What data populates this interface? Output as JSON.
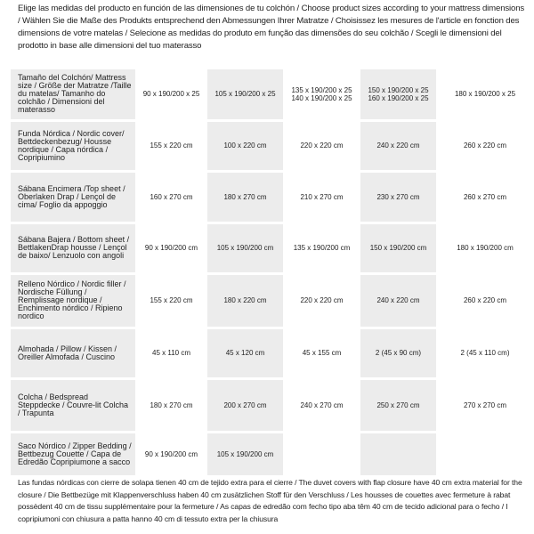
{
  "header": {
    "text": "Elige las medidas del producto en función de las dimensiones de tu colchón / Choose product sizes according to your mattress dimensions / Wählen Sie die Maße des Produkts entsprechend den Abmessungen Ihrer Matratze / Choisissez les mesures de l'article en fonction des dimensions de votre matelas / Selecione as medidas do produto em função das dimensões do seu colchão / Scegli le dimensioni del prodotto in base alle dimensioni del tuo materasso"
  },
  "table": {
    "rows": [
      {
        "label": "Tamaño del Colchón/ Mattress size / Größe der Matratze /Taille du matelas/ Tamanho do colchão / Dimensioni del materasso",
        "cells": [
          [
            "90 x 190/200 x 25"
          ],
          [
            "105 x 190/200 x 25"
          ],
          [
            "135 x 190/200 x 25",
            "140 x 190/200 x 25"
          ],
          [
            "150 x 190/200 x 25",
            "160 x 190/200 x 25"
          ],
          [
            "180 x 190/200 x 25"
          ]
        ]
      },
      {
        "label": "Funda Nórdica / Nordic cover/ Bettdeckenbezug/ Housse nordique / Capa nórdica / Copripiumino",
        "cells": [
          [
            "155 x 220 cm"
          ],
          [
            "100 x 220 cm"
          ],
          [
            "220 x 220 cm"
          ],
          [
            "240 x 220 cm"
          ],
          [
            "260 x 220 cm"
          ]
        ]
      },
      {
        "label": "Sábana Encimera /Top sheet / Oberlaken Drap / Lençol de cima/ Foglio da appoggio",
        "cells": [
          [
            "160 x 270 cm"
          ],
          [
            "180 x 270 cm"
          ],
          [
            "210 x 270 cm"
          ],
          [
            "230 x 270 cm"
          ],
          [
            "260 x 270 cm"
          ]
        ]
      },
      {
        "label": "Sábana Bajera / Bottom sheet / BettlakenDrap housse / Lençol de baixo/ Lenzuolo con angoli",
        "cells": [
          [
            "90 x 190/200 cm"
          ],
          [
            "105 x 190/200 cm"
          ],
          [
            "135 x 190/200 cm"
          ],
          [
            "150 x 190/200 cm"
          ],
          [
            "180 x 190/200 cm"
          ]
        ]
      },
      {
        "label": "Relleno Nórdico / Nordic filler / Nordische Füllung / Remplissage nordique / Enchimento nórdico / Ripieno nordico",
        "cells": [
          [
            "155 x 220 cm"
          ],
          [
            "180 x 220 cm"
          ],
          [
            "220 x 220 cm"
          ],
          [
            "240 x 220 cm"
          ],
          [
            "260 x 220 cm"
          ]
        ]
      },
      {
        "label": "Almohada / Pillow / Kissen / Oreiller Almofada / Cuscino",
        "cells": [
          [
            "45 x 110 cm"
          ],
          [
            "45 x 120 cm"
          ],
          [
            "45 x 155 cm"
          ],
          [
            "2 (45 x 90 cm)"
          ],
          [
            "2 (45 x 110 cm)"
          ]
        ]
      },
      {
        "label": "Colcha / Bedspread Steppdecke / Couvre-lit Colcha / Trapunta",
        "cells": [
          [
            "180 x 270 cm"
          ],
          [
            "200 x 270 cm"
          ],
          [
            "240 x 270 cm"
          ],
          [
            "250 x 270 cm"
          ],
          [
            "270 x 270 cm"
          ]
        ]
      },
      {
        "label": "Saco Nórdico / Zipper Bedding / Bettbezug Couette / Capa de Edredão Copripiumone a sacco",
        "cells": [
          [
            "90 x 190/200 cm"
          ],
          [
            "105 x 190/200 cm"
          ]
        ]
      }
    ]
  },
  "footer": {
    "text": "Las fundas nórdicas con cierre de solapa tienen 40 cm de tejido extra para el cierre / The duvet covers with flap closure have 40 cm extra material for the closure / Die Bettbezüge mit Klappenverschluss haben 40 cm zusätzlichen Stoff für den Verschluss / Les housses de couettes avec fermeture à rabat possèdent 40 cm de tissu supplémentaire pour la fermeture / As capas de edredão com fecho tipo aba têm 40 cm de tecido adicional para o fecho / I copripiumoni con chiusura a patta hanno 40 cm di tessuto extra per la chiusura"
  }
}
